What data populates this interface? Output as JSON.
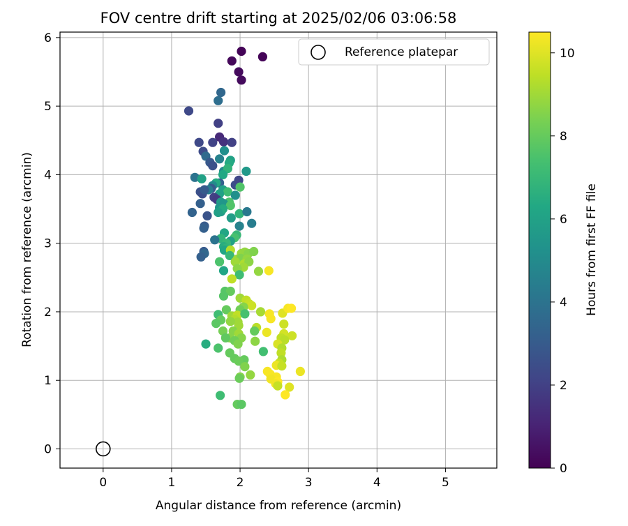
{
  "chart_data": {
    "type": "scatter",
    "title": "FOV centre drift starting at 2025/02/06 03:06:58",
    "xlabel": "Angular distance from reference (arcmin)",
    "ylabel": "Rotation from reference (arcmin)",
    "xlim": [
      -0.63,
      5.75
    ],
    "ylim": [
      -0.28,
      6.08
    ],
    "xticks": [
      0,
      1,
      2,
      3,
      4,
      5
    ],
    "yticks": [
      0,
      1,
      2,
      3,
      4,
      5,
      6
    ],
    "grid": true,
    "colormap": "viridis",
    "colorbar": {
      "label": "Hours from first FF file",
      "range": [
        0,
        10.5
      ],
      "ticks": [
        0,
        2,
        4,
        6,
        8,
        10
      ]
    },
    "legend": {
      "position": "top-right",
      "entries": [
        "Reference platepar"
      ]
    },
    "reference_point": {
      "label": "Reference platepar",
      "x": 0,
      "y": 0
    },
    "series": [
      {
        "points": [
          [
            2.02,
            5.8,
            0.1
          ],
          [
            2.33,
            5.72,
            0.1
          ],
          [
            1.88,
            5.66,
            0.2
          ],
          [
            1.98,
            5.5,
            0.3
          ],
          [
            2.02,
            5.38,
            0.3
          ],
          [
            1.72,
            5.2,
            3.5
          ],
          [
            1.68,
            5.08,
            3.8
          ],
          [
            1.25,
            4.93,
            2.3
          ],
          [
            1.68,
            4.75,
            2.0
          ],
          [
            1.7,
            4.55,
            1.2
          ],
          [
            1.76,
            4.48,
            1.5
          ],
          [
            1.4,
            4.47,
            2.3
          ],
          [
            1.6,
            4.47,
            2.1
          ],
          [
            1.88,
            4.47,
            2.0
          ],
          [
            1.46,
            4.34,
            2.4
          ],
          [
            1.5,
            4.27,
            3.6
          ],
          [
            1.77,
            4.35,
            5.2
          ],
          [
            1.56,
            4.18,
            2.9
          ],
          [
            1.6,
            4.13,
            2.6
          ],
          [
            1.7,
            4.23,
            4.6
          ],
          [
            1.86,
            4.21,
            6.0
          ],
          [
            1.84,
            4.17,
            6.4
          ],
          [
            1.76,
            4.05,
            5.0
          ],
          [
            1.82,
            4.09,
            6.8
          ],
          [
            2.09,
            4.05,
            5.6
          ],
          [
            1.34,
            3.96,
            4.0
          ],
          [
            1.44,
            3.94,
            6.0
          ],
          [
            1.75,
            4.0,
            6.3
          ],
          [
            1.93,
            3.85,
            2.5
          ],
          [
            1.98,
            3.92,
            2.2
          ],
          [
            2.0,
            3.82,
            7.6
          ],
          [
            1.7,
            3.88,
            3.2
          ],
          [
            1.65,
            3.88,
            6.4
          ],
          [
            1.6,
            3.84,
            5.0
          ],
          [
            1.58,
            3.8,
            3.0
          ],
          [
            1.54,
            3.78,
            4.4
          ],
          [
            1.42,
            3.75,
            2.6
          ],
          [
            1.45,
            3.72,
            2.5
          ],
          [
            1.48,
            3.78,
            3.0
          ],
          [
            1.75,
            3.78,
            6.0
          ],
          [
            1.82,
            3.75,
            7.2
          ],
          [
            1.7,
            3.72,
            6.0
          ],
          [
            1.93,
            3.7,
            5.2
          ],
          [
            1.62,
            3.67,
            2.0
          ],
          [
            1.66,
            3.64,
            1.8
          ],
          [
            1.84,
            3.6,
            7.5
          ],
          [
            1.72,
            3.6,
            5.8
          ],
          [
            1.76,
            3.58,
            5.5
          ],
          [
            1.42,
            3.58,
            3.2
          ],
          [
            1.86,
            3.55,
            7.6
          ],
          [
            1.7,
            3.52,
            5.5
          ],
          [
            1.72,
            3.46,
            5.6
          ],
          [
            1.75,
            3.5,
            6.4
          ],
          [
            1.3,
            3.45,
            3.3
          ],
          [
            1.68,
            3.45,
            5.9
          ],
          [
            1.99,
            3.43,
            6.8
          ],
          [
            2.1,
            3.46,
            4.2
          ],
          [
            1.87,
            3.37,
            5.8
          ],
          [
            1.52,
            3.4,
            2.7
          ],
          [
            2.17,
            3.29,
            4.4
          ],
          [
            1.99,
            3.25,
            4.6
          ],
          [
            1.48,
            3.25,
            3.0
          ],
          [
            1.47,
            3.22,
            3.2
          ],
          [
            1.77,
            3.15,
            6.2
          ],
          [
            1.95,
            3.12,
            7.0
          ],
          [
            1.92,
            3.08,
            7.4
          ],
          [
            1.72,
            3.07,
            6.8
          ],
          [
            1.63,
            3.05,
            4.0
          ],
          [
            1.86,
            3.03,
            6.0
          ],
          [
            1.8,
            3.0,
            7.0
          ],
          [
            1.76,
            2.95,
            6.5
          ],
          [
            1.8,
            2.93,
            6.8
          ],
          [
            1.77,
            2.9,
            6.2
          ],
          [
            1.47,
            2.88,
            3.0
          ],
          [
            1.48,
            2.85,
            3.5
          ],
          [
            1.86,
            2.9,
            9.3
          ],
          [
            2.02,
            2.85,
            8.9
          ],
          [
            2.07,
            2.87,
            8.8
          ],
          [
            2.12,
            2.85,
            8.6
          ],
          [
            2.2,
            2.88,
            8.5
          ],
          [
            1.85,
            2.82,
            7.0
          ],
          [
            1.43,
            2.8,
            3.2
          ],
          [
            1.96,
            2.77,
            9.0
          ],
          [
            2.01,
            2.78,
            8.5
          ],
          [
            2.1,
            2.77,
            8.8
          ],
          [
            1.7,
            2.73,
            7.5
          ],
          [
            1.93,
            2.73,
            9.0
          ],
          [
            2.06,
            2.7,
            9.2
          ],
          [
            2.13,
            2.73,
            8.7
          ],
          [
            2.05,
            2.65,
            9.0
          ],
          [
            1.96,
            2.63,
            8.7
          ],
          [
            1.76,
            2.6,
            6.2
          ],
          [
            2.27,
            2.59,
            8.8
          ],
          [
            2.42,
            2.6,
            10.4
          ],
          [
            1.99,
            2.54,
            7.2
          ],
          [
            1.88,
            2.48,
            9.5
          ],
          [
            1.78,
            2.3,
            7.7
          ],
          [
            1.86,
            2.3,
            8.0
          ],
          [
            1.76,
            2.23,
            7.7
          ],
          [
            2.0,
            2.2,
            9.0
          ],
          [
            2.09,
            2.17,
            9.5
          ],
          [
            2.13,
            2.12,
            9.6
          ],
          [
            2.17,
            2.09,
            9.7
          ],
          [
            2.05,
            2.07,
            8.6
          ],
          [
            2.0,
            2.03,
            8.2
          ],
          [
            1.8,
            2.03,
            8.0
          ],
          [
            2.3,
            2.0,
            9.1
          ],
          [
            2.43,
            1.97,
            10.4
          ],
          [
            2.62,
            1.98,
            10.0
          ],
          [
            2.7,
            2.05,
            10.4
          ],
          [
            2.75,
            2.05,
            10.5
          ],
          [
            1.68,
            1.96,
            7.2
          ],
          [
            1.88,
            1.94,
            9.0
          ],
          [
            1.96,
            1.95,
            9.5
          ],
          [
            2.07,
            1.97,
            7.4
          ],
          [
            2.45,
            1.9,
            10.4
          ],
          [
            1.72,
            1.88,
            8.0
          ],
          [
            1.92,
            1.89,
            9.3
          ],
          [
            1.97,
            1.85,
            9.0
          ],
          [
            1.86,
            1.86,
            8.8
          ],
          [
            1.65,
            1.83,
            7.8
          ],
          [
            1.98,
            1.8,
            9.0
          ],
          [
            2.64,
            1.82,
            9.7
          ],
          [
            2.24,
            1.77,
            9.4
          ],
          [
            1.75,
            1.72,
            8.3
          ],
          [
            2.21,
            1.72,
            8.0
          ],
          [
            1.9,
            1.72,
            8.6
          ],
          [
            2.64,
            1.68,
            9.8
          ],
          [
            2.76,
            1.65,
            9.7
          ],
          [
            2.6,
            1.62,
            9.5
          ],
          [
            1.98,
            1.68,
            9.0
          ],
          [
            2.39,
            1.7,
            10.2
          ],
          [
            1.85,
            1.62,
            8.6
          ],
          [
            1.79,
            1.62,
            7.9
          ],
          [
            2.02,
            1.62,
            8.6
          ],
          [
            1.92,
            1.58,
            8.2
          ],
          [
            2.22,
            1.57,
            8.7
          ],
          [
            2.65,
            1.59,
            9.4
          ],
          [
            2.55,
            1.53,
            9.9
          ],
          [
            1.97,
            1.53,
            8.5
          ],
          [
            1.5,
            1.53,
            6.5
          ],
          [
            2.61,
            1.47,
            9.3
          ],
          [
            1.68,
            1.47,
            7.5
          ],
          [
            1.85,
            1.4,
            8.0
          ],
          [
            2.34,
            1.42,
            7.3
          ],
          [
            2.6,
            1.4,
            9.5
          ],
          [
            1.92,
            1.32,
            8.0
          ],
          [
            2.06,
            1.3,
            8.0
          ],
          [
            2.61,
            1.3,
            9.2
          ],
          [
            1.98,
            1.28,
            8.1
          ],
          [
            2.57,
            1.25,
            9.6
          ],
          [
            2.53,
            1.22,
            10.2
          ],
          [
            2.61,
            1.21,
            9.6
          ],
          [
            2.07,
            1.2,
            8.5
          ],
          [
            2.4,
            1.13,
            10.4
          ],
          [
            2.44,
            1.09,
            10.4
          ],
          [
            2.88,
            1.13,
            10.2
          ],
          [
            2.15,
            1.08,
            8.8
          ],
          [
            2.0,
            1.05,
            8.6
          ],
          [
            1.99,
            1.03,
            8.1
          ],
          [
            2.53,
            1.05,
            10.4
          ],
          [
            2.45,
            1.02,
            10.3
          ],
          [
            2.55,
            0.98,
            10.5
          ],
          [
            2.52,
            0.95,
            10.3
          ],
          [
            2.55,
            0.92,
            9.6
          ],
          [
            2.72,
            0.9,
            10.0
          ],
          [
            2.66,
            0.79,
            10.5
          ],
          [
            1.71,
            0.78,
            7.2
          ],
          [
            1.96,
            0.65,
            8.0
          ],
          [
            2.02,
            0.65,
            7.8
          ]
        ]
      }
    ]
  }
}
